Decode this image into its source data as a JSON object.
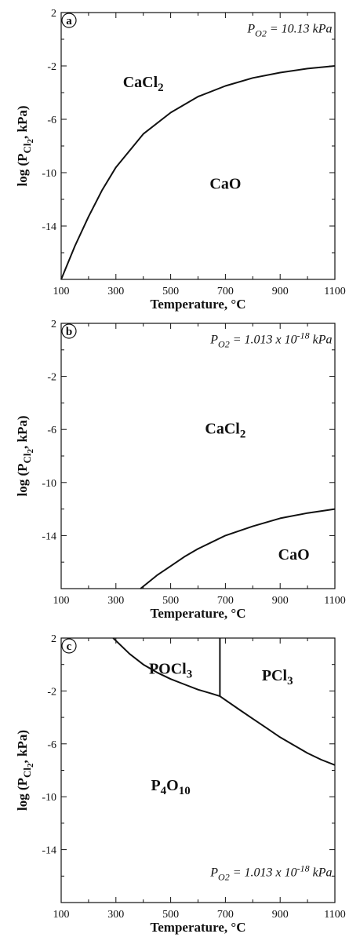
{
  "chart_data": [
    {
      "type": "line",
      "panel_label": "a",
      "xlabel": "Temperature, °C",
      "ylabel_parts": {
        "pre": "log (P",
        "sub": "Cl",
        "subsub": "2",
        "post": ", kPa)"
      },
      "xlim": [
        100,
        1100
      ],
      "ylim": [
        -18,
        2
      ],
      "x_ticks": [
        100,
        300,
        500,
        700,
        900,
        1100
      ],
      "y_ticks": [
        2,
        -2,
        -6,
        -10,
        -14
      ],
      "x_tick_labels": [
        "100",
        "300",
        "500",
        "700",
        "900",
        "1100"
      ],
      "y_tick_labels": [
        "2",
        "-2",
        "-6",
        "-10",
        "-14"
      ],
      "annotation": {
        "pre": "P",
        "sub": "O2",
        "mid": " = 10.13 kPa",
        "sup": "",
        "post": ""
      },
      "annotation_anchor": {
        "x": 1090,
        "y": 0.5
      },
      "regions": [
        {
          "text": "CaCl",
          "sub": "2",
          "after": "",
          "x": 400,
          "y": -3.6
        },
        {
          "text": "CaO",
          "sub": "",
          "after": "",
          "x": 700,
          "y": -11.2
        }
      ],
      "series": [
        {
          "x": [
            100,
            150,
            200,
            250,
            300,
            400,
            500,
            600,
            700,
            800,
            900,
            1000,
            1100
          ],
          "y": [
            -18,
            -15.5,
            -13.3,
            -11.3,
            -9.6,
            -7.1,
            -5.5,
            -4.3,
            -3.5,
            -2.9,
            -2.5,
            -2.2,
            -2.0
          ]
        }
      ]
    },
    {
      "type": "line",
      "panel_label": "b",
      "xlabel": "Temperature, °C",
      "ylabel_parts": {
        "pre": "log (P",
        "sub": "Cl",
        "subsub": "2",
        "post": ", kPa)"
      },
      "xlim": [
        100,
        1100
      ],
      "ylim": [
        -18,
        2
      ],
      "x_ticks": [
        100,
        300,
        500,
        700,
        900,
        1100
      ],
      "y_ticks": [
        2,
        -2,
        -6,
        -10,
        -14
      ],
      "x_tick_labels": [
        "100",
        "300",
        "500",
        "700",
        "900",
        "1100"
      ],
      "y_tick_labels": [
        "2",
        "-2",
        "-6",
        "-10",
        "-14"
      ],
      "annotation": {
        "pre": "P",
        "sub": "O2",
        "mid": " = 1.013 x 10",
        "sup": "-18",
        "post": " kPa"
      },
      "annotation_anchor": {
        "x": 1090,
        "y": 0.5
      },
      "regions": [
        {
          "text": "CaCl",
          "sub": "2",
          "after": "",
          "x": 700,
          "y": -6.3
        },
        {
          "text": "CaO",
          "sub": "",
          "after": "",
          "x": 950,
          "y": -15.8
        }
      ],
      "series": [
        {
          "x": [
            390,
            450,
            500,
            550,
            600,
            650,
            700,
            800,
            900,
            1000,
            1100
          ],
          "y": [
            -18,
            -17.0,
            -16.3,
            -15.6,
            -15.0,
            -14.5,
            -14.0,
            -13.3,
            -12.7,
            -12.3,
            -12.0
          ]
        }
      ]
    },
    {
      "type": "line",
      "panel_label": "c",
      "xlabel": "Temperature, °C",
      "ylabel_parts": {
        "pre": "log (P",
        "sub": "Cl",
        "subsub": "2",
        "post": ", kPa)"
      },
      "xlim": [
        100,
        1100
      ],
      "ylim": [
        -18,
        2
      ],
      "x_ticks": [
        100,
        300,
        500,
        700,
        900,
        1100
      ],
      "y_ticks": [
        2,
        -2,
        -6,
        -10,
        -14
      ],
      "x_tick_labels": [
        "100",
        "300",
        "500",
        "700",
        "900",
        "1100"
      ],
      "y_tick_labels": [
        "2",
        "-2",
        "-6",
        "-10",
        "-14"
      ],
      "annotation": {
        "pre": "P",
        "sub": "O2",
        "mid": " = 1.013 x 10",
        "sup": "-18",
        "post": " kPa"
      },
      "annotation_anchor": {
        "x": 1090,
        "y": -16.0
      },
      "regions": [
        {
          "text": "POCl",
          "sub": "3",
          "after": "",
          "x": 500,
          "y": -0.7
        },
        {
          "text": "PCl",
          "sub": "3",
          "after": "",
          "x": 890,
          "y": -1.2
        },
        {
          "text": "P",
          "sub": "4",
          "after": "O",
          "after_sub": "10",
          "x": 500,
          "y": -9.5
        }
      ],
      "series": [
        {
          "x": [
            290,
            350,
            400,
            450,
            500,
            550,
            600,
            650,
            680
          ],
          "y": [
            2,
            0.8,
            0.0,
            -0.6,
            -1.1,
            -1.5,
            -1.9,
            -2.2,
            -2.4
          ]
        },
        {
          "x": [
            680,
            680
          ],
          "y": [
            2,
            -2.4
          ]
        },
        {
          "x": [
            680,
            750,
            800,
            850,
            900,
            950,
            1000,
            1050,
            1100
          ],
          "y": [
            -2.4,
            -3.4,
            -4.1,
            -4.8,
            -5.5,
            -6.1,
            -6.7,
            -7.2,
            -7.6
          ]
        }
      ]
    }
  ]
}
